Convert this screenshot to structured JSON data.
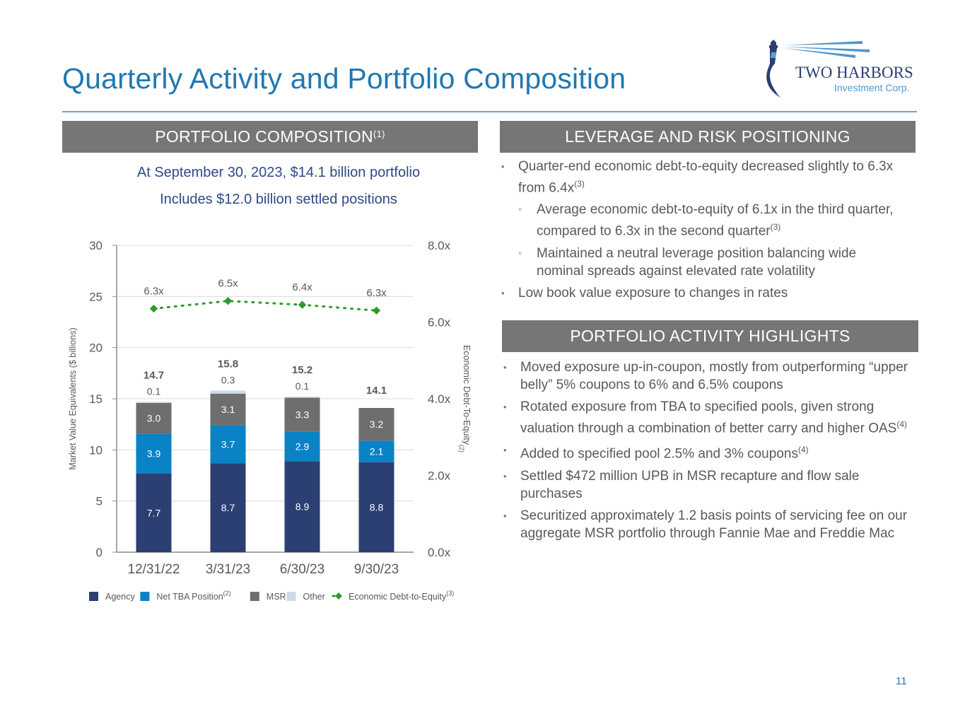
{
  "title": "Quarterly Activity and Portfolio Composition",
  "logo": {
    "name": "TWO HARBORS",
    "sub": "Investment Corp."
  },
  "colors": {
    "agency": "#2b3f73",
    "tba": "#0a82c6",
    "msr": "#6e6e6e",
    "other": "#cfd9e6",
    "de": "#2e9a2e",
    "title": "#1f78b4",
    "banner": "#767676"
  },
  "left": {
    "banner": "PORTFOLIO COMPOSITION",
    "banner_note": "(1)",
    "line1": "At September 30, 2023, $14.1 billion portfolio",
    "line2": "Includes $12.0 billion settled positions"
  },
  "right_top": {
    "banner": "LEVERAGE AND RISK POSITIONING",
    "bullets": [
      {
        "text": "Quarter-end economic debt-to-equity decreased slightly to 6.3x from 6.4x",
        "note": "(3)"
      },
      {
        "text": "Average economic debt-to-equity of 6.1x in the third quarter, compared to 6.3x in the second quarter",
        "note": "(3)"
      },
      {
        "text": "Maintained a neutral leverage position balancing wide nominal spreads against elevated rate volatility",
        "note": ""
      },
      {
        "text": "Low book value exposure to changes in rates",
        "note": ""
      }
    ]
  },
  "right_bottom": {
    "banner": "PORTFOLIO ACTIVITY HIGHLIGHTS",
    "bullets": [
      {
        "text": "Moved exposure up-in-coupon, mostly from outperforming “upper belly” 5% coupons to 6% and 6.5% coupons",
        "note": ""
      },
      {
        "text": "Rotated exposure from TBA to specified pools, given strong valuation through a combination of better carry and higher OAS",
        "note": "(4)"
      },
      {
        "text": "Added to specified pool 2.5% and 3% coupons",
        "note": "(4)"
      },
      {
        "text": "Settled $472 million UPB in MSR recapture and flow sale purchases",
        "note": ""
      },
      {
        "text": "Securitized approximately 1.2 basis points of servicing fee on our aggregate MSR portfolio through Fannie Mae and Freddie Mac",
        "note": ""
      }
    ]
  },
  "chart_data": {
    "type": "bar",
    "stacked": true,
    "categories": [
      "12/31/22",
      "3/31/23",
      "6/30/23",
      "9/30/23"
    ],
    "series": [
      {
        "name": "Agency",
        "values": [
          7.7,
          8.7,
          8.9,
          8.8
        ]
      },
      {
        "name": "Net TBA Position",
        "note": "(2)",
        "values": [
          3.9,
          3.7,
          2.9,
          2.1
        ]
      },
      {
        "name": "MSR",
        "values": [
          3.0,
          3.1,
          3.3,
          3.2
        ]
      },
      {
        "name": "Other",
        "values": [
          0.1,
          0.3,
          0.1,
          null
        ]
      }
    ],
    "totals": [
      "14.7",
      "15.8",
      "15.2",
      "14.1"
    ],
    "line_series": {
      "name": "Economic Debt-to-Equity",
      "note": "(3)",
      "values": [
        6.3,
        6.5,
        6.4,
        6.3
      ],
      "labels": [
        "6.3x",
        "6.5x",
        "6.4x",
        "6.3x"
      ],
      "plot_values": [
        6.35,
        6.55,
        6.45,
        6.3
      ]
    },
    "ylabel": "Market Value Equivalents ($ billions)",
    "y2label": "Economic Debt-To-Equity",
    "y2label_note": "(2)",
    "ylim": [
      0,
      30
    ],
    "yticks": [
      "0",
      "5",
      "10",
      "15",
      "20",
      "25",
      "30"
    ],
    "y2lim": [
      0,
      8
    ],
    "y2ticks": [
      "0.0x",
      "2.0x",
      "4.0x",
      "6.0x",
      "8.0x"
    ]
  },
  "page_number": "11"
}
